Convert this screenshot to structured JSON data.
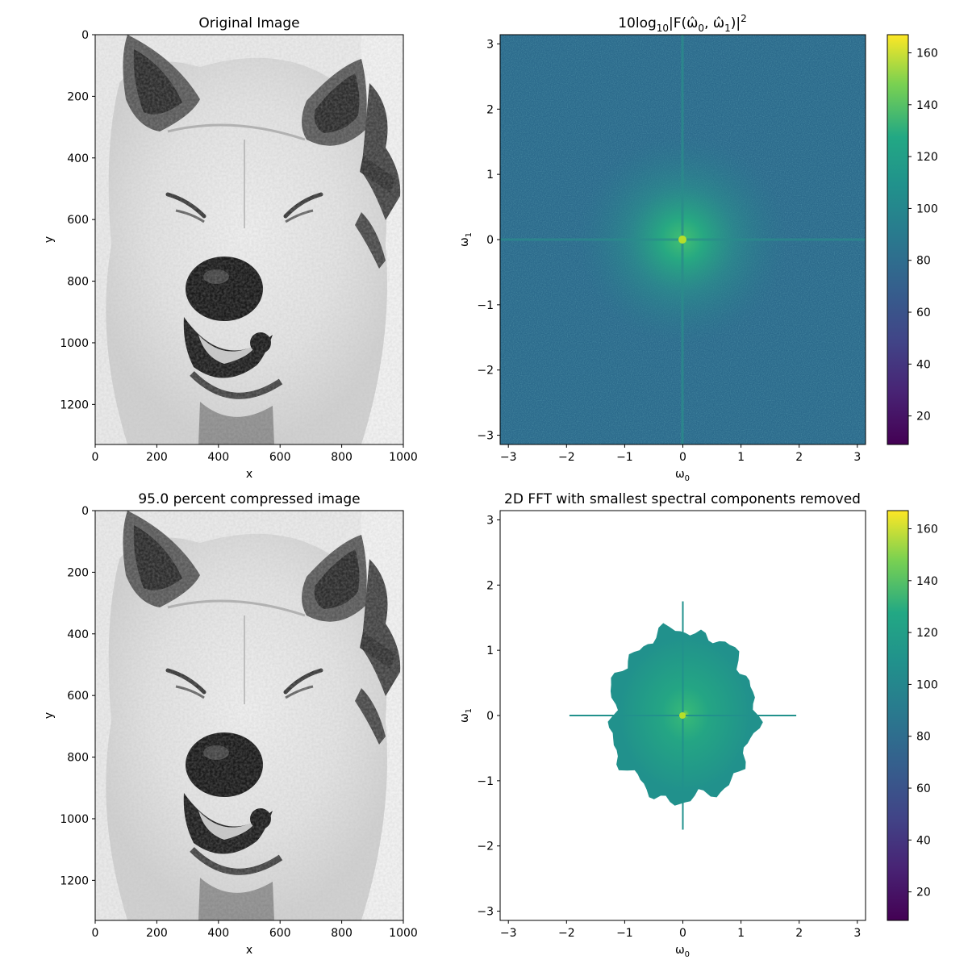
{
  "chart_data": [
    {
      "type": "image",
      "title": "Original Image",
      "xlabel": "x",
      "ylabel": "y",
      "xlim": [
        0,
        1000
      ],
      "ylim": [
        1330,
        0
      ],
      "xticks": [
        "0",
        "200",
        "400",
        "600",
        "800",
        "1000"
      ],
      "yticks": [
        "0",
        "200",
        "400",
        "600",
        "800",
        "1000",
        "1200"
      ],
      "colormap": "gray"
    },
    {
      "type": "heatmap",
      "title_prefix": "10log",
      "title_sub": "10",
      "title_rest": "|F(ω̂",
      "title_sub2": "0",
      "title_mid": ", ω̂",
      "title_sub3": "1",
      "title_end": ")|",
      "title_sup": "2",
      "xlabel_main": "ω",
      "xlabel_sub": "0",
      "ylabel_main": "ω",
      "ylabel_sub": "1",
      "xlim": [
        -3.1416,
        3.1416
      ],
      "ylim": [
        -3.1416,
        3.1416
      ],
      "xticks": [
        "−3",
        "−2",
        "−1",
        "0",
        "1",
        "2",
        "3"
      ],
      "yticks": [
        "−3",
        "−2",
        "−1",
        "0",
        "1",
        "2",
        "3"
      ],
      "colormap": "viridis",
      "colorbar_range": [
        9,
        167
      ],
      "colorbar_ticks": [
        "20",
        "40",
        "60",
        "80",
        "100",
        "120",
        "140",
        "160"
      ],
      "background_level": 66,
      "peak_level": 110
    },
    {
      "type": "image",
      "title": "95.0 percent compressed image",
      "xlabel": "x",
      "ylabel": "y",
      "xlim": [
        0,
        1000
      ],
      "ylim": [
        1330,
        0
      ],
      "xticks": [
        "0",
        "200",
        "400",
        "600",
        "800",
        "1000"
      ],
      "yticks": [
        "0",
        "200",
        "400",
        "600",
        "800",
        "1000",
        "1200"
      ],
      "colormap": "gray"
    },
    {
      "type": "heatmap",
      "title": "2D FFT with smallest spectral components removed",
      "xlabel_main": "ω",
      "xlabel_sub": "0",
      "ylabel_main": "ω",
      "ylabel_sub": "1",
      "xlim": [
        -3.1416,
        3.1416
      ],
      "ylim": [
        -3.1416,
        3.1416
      ],
      "xticks": [
        "−3",
        "−2",
        "−1",
        "0",
        "1",
        "2",
        "3"
      ],
      "yticks": [
        "−3",
        "−2",
        "−1",
        "0",
        "1",
        "2",
        "3"
      ],
      "colormap": "viridis",
      "colorbar_range": [
        9,
        167
      ],
      "colorbar_ticks": [
        "20",
        "40",
        "60",
        "80",
        "100",
        "120",
        "140",
        "160"
      ],
      "retained_radius": 1.25,
      "retained_level": 88
    }
  ]
}
